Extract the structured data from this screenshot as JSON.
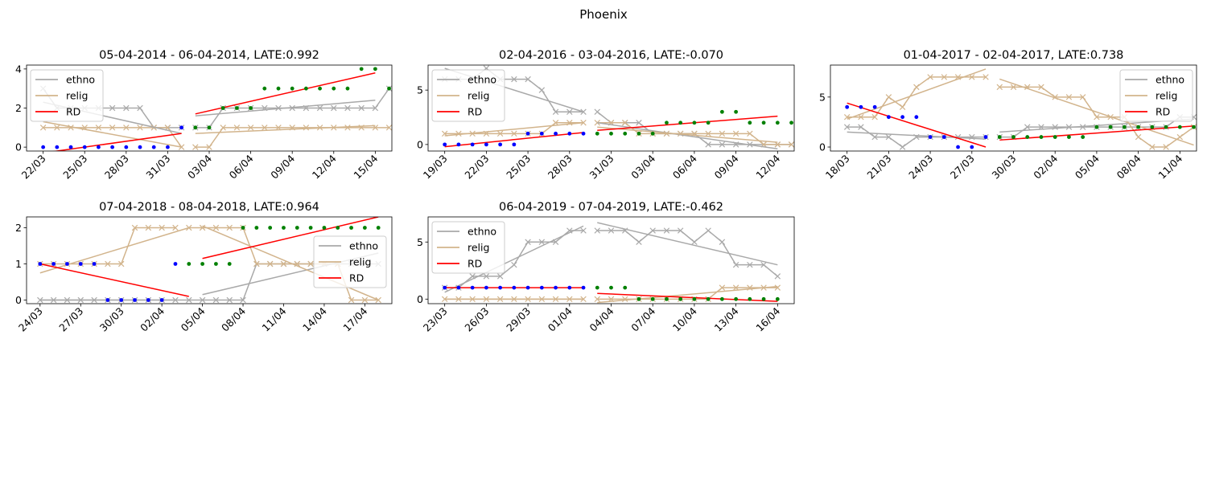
{
  "figure": {
    "title": "Phoenix"
  },
  "colors": {
    "ethno": "#a9a9a9",
    "relig": "#d2b48c",
    "rd": "#ff0000",
    "pre": "#0000ff",
    "post": "#008000"
  },
  "chart_data": [
    {
      "type": "line",
      "title": "05-04-2014 - 06-04-2014, LATE:0.992",
      "legend_position": "top-left",
      "ylim": [
        -0.2,
        4.2
      ],
      "yticks": [
        0,
        2,
        4
      ],
      "xlim": [
        -1.2,
        25.2
      ],
      "xticks": [
        {
          "x": 0,
          "label": "22/03"
        },
        {
          "x": 3,
          "label": "25/03"
        },
        {
          "x": 6,
          "label": "28/03"
        },
        {
          "x": 9,
          "label": "31/03"
        },
        {
          "x": 12,
          "label": "03/04"
        },
        {
          "x": 15,
          "label": "06/04"
        },
        {
          "x": 18,
          "label": "09/04"
        },
        {
          "x": 21,
          "label": "12/04"
        },
        {
          "x": 24,
          "label": "15/04"
        }
      ],
      "cutoff": 11,
      "legend": [
        "ethno",
        "relig",
        "RD"
      ],
      "ethno": [
        3,
        2,
        2,
        2,
        2,
        2,
        2,
        2,
        1,
        1,
        1,
        1,
        1,
        2,
        2,
        2,
        2,
        2,
        2,
        2,
        2,
        2,
        2,
        2,
        2,
        3
      ],
      "relig": [
        1,
        1,
        1,
        1,
        1,
        1,
        1,
        1,
        1,
        1,
        0,
        0,
        0,
        1,
        1,
        1,
        1,
        1,
        1,
        1,
        1,
        1,
        1,
        1,
        1,
        1
      ],
      "rd": [
        0,
        0,
        0,
        0,
        0,
        0,
        0,
        0,
        0,
        0,
        1,
        1,
        1,
        2,
        2,
        2,
        3,
        3,
        3,
        3,
        3,
        3,
        3,
        4,
        4,
        3
      ],
      "fits": {
        "ethno": [
          [
            0,
            2.3
          ],
          [
            10,
            0.7
          ],
          [
            11,
            1.6
          ],
          [
            24,
            2.4
          ]
        ],
        "relig": [
          [
            0,
            1.3
          ],
          [
            10,
            0.0
          ],
          [
            11,
            0.7
          ],
          [
            24,
            1.1
          ]
        ],
        "rd": [
          [
            0,
            -0.3
          ],
          [
            10,
            0.7
          ],
          [
            11,
            1.7
          ],
          [
            24,
            3.8
          ]
        ]
      }
    },
    {
      "type": "line",
      "title": "02-04-2016 - 03-04-2016, LATE:-0.070",
      "legend_position": "top-left",
      "ylim": [
        -0.6,
        7.3
      ],
      "yticks": [
        0,
        5
      ],
      "xlim": [
        -1.2,
        25.2
      ],
      "xticks": [
        {
          "x": 0,
          "label": "19/03"
        },
        {
          "x": 3,
          "label": "22/03"
        },
        {
          "x": 6,
          "label": "25/03"
        },
        {
          "x": 9,
          "label": "28/03"
        },
        {
          "x": 12,
          "label": "31/03"
        },
        {
          "x": 15,
          "label": "03/04"
        },
        {
          "x": 18,
          "label": "06/04"
        },
        {
          "x": 21,
          "label": "09/04"
        },
        {
          "x": 24,
          "label": "12/04"
        }
      ],
      "cutoff": 11,
      "legend": [
        "ethno",
        "relig",
        "RD"
      ],
      "ethno": [
        6,
        6,
        6,
        7,
        6,
        6,
        6,
        5,
        3,
        3,
        3,
        3,
        2,
        2,
        2,
        1,
        1,
        1,
        1,
        0,
        0,
        0,
        0,
        0,
        0,
        0
      ],
      "relig": [
        1,
        1,
        1,
        1,
        1,
        1,
        1,
        1,
        2,
        2,
        2,
        2,
        2,
        2,
        1,
        1,
        1,
        1,
        1,
        1,
        1,
        1,
        1,
        0,
        0,
        0
      ],
      "rd": [
        0,
        0,
        0,
        0,
        0,
        0,
        1,
        1,
        1,
        1,
        1,
        1,
        1,
        1,
        1,
        1,
        2,
        2,
        2,
        2,
        3,
        3,
        2,
        2,
        2,
        2
      ],
      "fits": {
        "ethno": [
          [
            0,
            7.0
          ],
          [
            10,
            3.0
          ],
          [
            11,
            2.0
          ],
          [
            24,
            -0.4
          ]
        ],
        "relig": [
          [
            0,
            0.8
          ],
          [
            10,
            2.0
          ],
          [
            11,
            1.6
          ],
          [
            24,
            0.2
          ]
        ],
        "rd": [
          [
            0,
            -0.2
          ],
          [
            10,
            1.1
          ],
          [
            11,
            1.3
          ],
          [
            24,
            2.6
          ]
        ]
      }
    },
    {
      "type": "line",
      "title": "01-04-2017 - 02-04-2017, LATE:0.738",
      "legend_position": "top-right",
      "ylim": [
        -0.4,
        8.2
      ],
      "yticks": [
        0,
        5
      ],
      "xlim": [
        -1.2,
        25.2
      ],
      "xticks": [
        {
          "x": 0,
          "label": "18/03"
        },
        {
          "x": 3,
          "label": "21/03"
        },
        {
          "x": 6,
          "label": "24/03"
        },
        {
          "x": 9,
          "label": "27/03"
        },
        {
          "x": 12,
          "label": "30/03"
        },
        {
          "x": 15,
          "label": "02/04"
        },
        {
          "x": 18,
          "label": "05/04"
        },
        {
          "x": 21,
          "label": "08/04"
        },
        {
          "x": 24,
          "label": "11/04"
        }
      ],
      "cutoff": 11,
      "legend": [
        "ethno",
        "relig",
        "RD"
      ],
      "ethno": [
        2,
        2,
        1,
        1,
        0,
        1,
        1,
        1,
        1,
        1,
        1,
        1,
        1,
        2,
        2,
        2,
        2,
        2,
        2,
        2,
        2,
        2,
        2,
        2,
        3,
        3
      ],
      "relig": [
        3,
        3,
        3,
        5,
        4,
        6,
        7,
        7,
        7,
        7,
        7,
        6,
        6,
        6,
        6,
        5,
        5,
        5,
        3,
        3,
        3,
        1,
        0,
        0,
        1,
        2
      ],
      "rd": [
        4,
        4,
        4,
        3,
        3,
        3,
        1,
        1,
        0,
        0,
        1,
        1,
        1,
        1,
        1,
        1,
        1,
        1,
        2,
        2,
        2,
        2,
        2,
        2,
        2,
        2
      ],
      "fits": {
        "ethno": [
          [
            0,
            1.5
          ],
          [
            10,
            0.8
          ],
          [
            11,
            1.5
          ],
          [
            25,
            2.8
          ]
        ],
        "relig": [
          [
            0,
            2.8
          ],
          [
            10,
            7.8
          ],
          [
            11,
            6.8
          ],
          [
            25,
            0.2
          ]
        ],
        "rd": [
          [
            0,
            4.4
          ],
          [
            10,
            0.0
          ],
          [
            11,
            0.7
          ],
          [
            25,
            2.1
          ]
        ]
      }
    },
    {
      "type": "line",
      "title": "07-04-2018 - 08-04-2018, LATE:0.964",
      "legend_position": "center-right",
      "ylim": [
        -0.1,
        2.3
      ],
      "yticks": [
        0,
        1,
        2
      ],
      "xlim": [
        -1.0,
        26.0
      ],
      "xticks": [
        {
          "x": 0,
          "label": "24/03"
        },
        {
          "x": 3,
          "label": "27/03"
        },
        {
          "x": 6,
          "label": "30/03"
        },
        {
          "x": 9,
          "label": "02/04"
        },
        {
          "x": 12,
          "label": "05/04"
        },
        {
          "x": 15,
          "label": "08/04"
        },
        {
          "x": 18,
          "label": "11/04"
        },
        {
          "x": 21,
          "label": "14/04"
        },
        {
          "x": 24,
          "label": "17/04"
        }
      ],
      "cutoff": 11,
      "legend": [
        "ethno",
        "relig",
        "RD"
      ],
      "ethno": [
        0,
        0,
        0,
        0,
        0,
        0,
        0,
        0,
        0,
        0,
        0,
        0,
        0,
        0,
        0,
        0,
        1,
        1,
        1,
        1,
        1,
        1,
        1,
        1,
        1,
        1
      ],
      "relig": [
        1,
        1,
        1,
        1,
        1,
        1,
        1,
        2,
        2,
        2,
        2,
        2,
        2,
        2,
        2,
        2,
        1,
        1,
        1,
        1,
        1,
        1,
        1,
        0,
        0,
        0
      ],
      "rd": [
        1,
        1,
        1,
        1,
        1,
        0,
        0,
        0,
        0,
        0,
        1,
        1,
        1,
        1,
        1,
        2,
        2,
        2,
        2,
        2,
        2,
        2,
        2,
        2,
        2,
        2
      ],
      "fits": {
        "ethno": [
          [
            0,
            0.0
          ],
          [
            11,
            0.0
          ],
          [
            12,
            0.15
          ],
          [
            25,
            1.3
          ]
        ],
        "relig": [
          [
            0,
            0.75
          ],
          [
            11,
            2.0
          ],
          [
            12,
            2.05
          ],
          [
            25,
            0.0
          ]
        ],
        "rd": [
          [
            0,
            1.0
          ],
          [
            11,
            0.1
          ],
          [
            12,
            1.15
          ],
          [
            25,
            2.3
          ]
        ]
      }
    },
    {
      "type": "line",
      "title": "06-04-2019 - 07-04-2019, LATE:-0.462",
      "legend_position": "top-left",
      "ylim": [
        -0.4,
        7.2
      ],
      "yticks": [
        0,
        5
      ],
      "xlim": [
        -1.2,
        25.2
      ],
      "xticks": [
        {
          "x": 0,
          "label": "23/03"
        },
        {
          "x": 3,
          "label": "26/03"
        },
        {
          "x": 6,
          "label": "29/03"
        },
        {
          "x": 9,
          "label": "01/04"
        },
        {
          "x": 12,
          "label": "04/04"
        },
        {
          "x": 15,
          "label": "07/04"
        },
        {
          "x": 18,
          "label": "10/04"
        },
        {
          "x": 21,
          "label": "13/04"
        },
        {
          "x": 24,
          "label": "16/04"
        }
      ],
      "cutoff": 11,
      "legend": [
        "ethno",
        "relig",
        "RD"
      ],
      "ethno": [
        1,
        1,
        2,
        2,
        2,
        3,
        5,
        5,
        5,
        6,
        6,
        6,
        6,
        6,
        5,
        6,
        6,
        6,
        5,
        6,
        5,
        3,
        3,
        3,
        2
      ],
      "relig": [
        0,
        0,
        0,
        0,
        0,
        0,
        0,
        0,
        0,
        0,
        0,
        0,
        0,
        0,
        0,
        0,
        0,
        0,
        0,
        0,
        1,
        1,
        1,
        1,
        1
      ],
      "rd": [
        1,
        1,
        1,
        1,
        1,
        1,
        1,
        1,
        1,
        1,
        1,
        1,
        1,
        1,
        0,
        0,
        0,
        0,
        0,
        0,
        0,
        0,
        0,
        0,
        0
      ],
      "fits": {
        "ethno": [
          [
            0,
            0.6
          ],
          [
            10,
            6.4
          ],
          [
            11,
            6.7
          ],
          [
            24,
            3.0
          ]
        ],
        "relig": [
          [
            0,
            0.0
          ],
          [
            10,
            0.0
          ],
          [
            11,
            -0.3
          ],
          [
            24,
            1.1
          ]
        ],
        "rd": [
          [
            0,
            1.0
          ],
          [
            10,
            1.0
          ],
          [
            11,
            0.5
          ],
          [
            24,
            -0.2
          ]
        ]
      }
    }
  ]
}
